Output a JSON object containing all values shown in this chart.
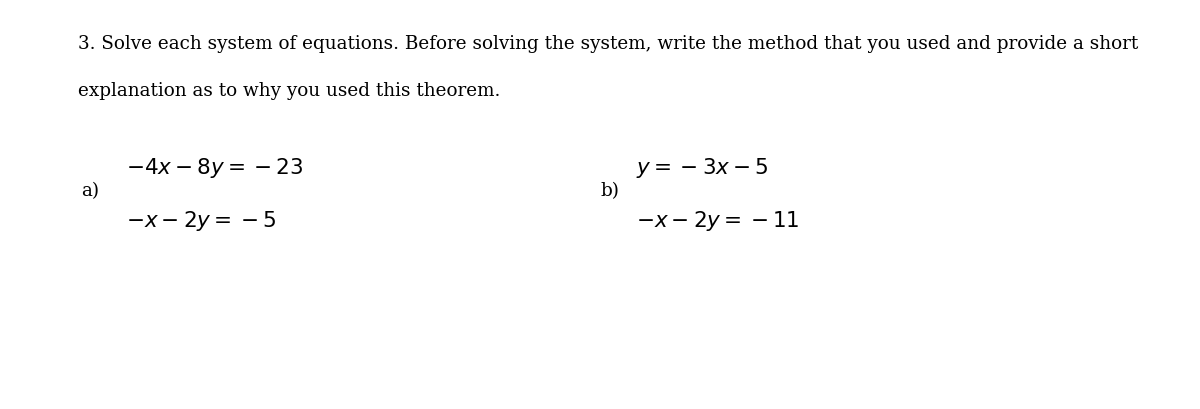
{
  "background_color": "#ffffff",
  "title_line1": "3. Solve each system of equations. Before solving the system, write the method that you used and provide a short",
  "title_line2": "explanation as to why you used this theorem.",
  "label_a": "a)",
  "label_b": "b)",
  "eq_a1": "$-4x - 8y = -23$",
  "eq_a2": "$-x - 2y = -5$",
  "eq_b1": "$y = -3x - 5$",
  "eq_b2": "$-x - 2y = -11$",
  "text_color": "#000000",
  "font_size_header": 13.2,
  "font_size_eq": 15.5,
  "font_size_label": 13.2
}
